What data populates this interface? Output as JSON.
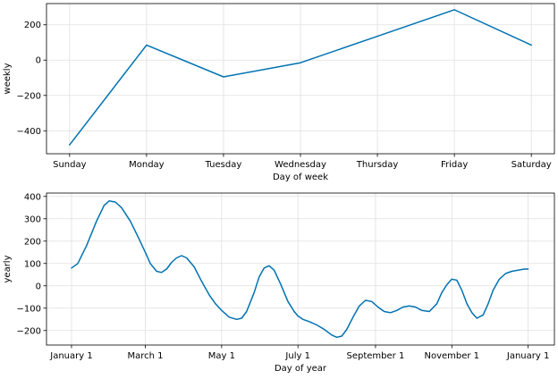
{
  "chart_data": [
    {
      "type": "line",
      "xlabel": "Day of week",
      "ylabel": "weekly",
      "categories": [
        "Sunday",
        "Monday",
        "Tuesday",
        "Wednesday",
        "Thursday",
        "Friday",
        "Saturday"
      ],
      "series": [
        {
          "values": [
            -480,
            85,
            -95,
            -15,
            135,
            285,
            85
          ],
          "color": "#0072B2"
        }
      ],
      "ylim": [
        -530,
        320
      ],
      "yticks": [
        -400,
        -200,
        0,
        200
      ],
      "ytick_labels": [
        "−400",
        "−200",
        "0",
        "200"
      ],
      "grid": true
    },
    {
      "type": "line",
      "xlabel": "Day of year",
      "ylabel": "yearly",
      "x_range": [
        -20,
        386
      ],
      "xticks": [
        0,
        59,
        120,
        181,
        243,
        304,
        365
      ],
      "xtick_labels": [
        "January 1",
        "March 1",
        "May 1",
        "July 1",
        "September 1",
        "November 1",
        "January 1"
      ],
      "ylim": [
        -265,
        415
      ],
      "yticks": [
        -200,
        -100,
        0,
        100,
        200,
        300,
        400
      ],
      "ytick_labels": [
        "−200",
        "−100",
        "0",
        "100",
        "200",
        "300",
        "400"
      ],
      "grid": true,
      "series": [
        {
          "color": "#0072B2",
          "x": [
            0,
            5,
            12,
            20,
            26,
            30,
            35,
            40,
            47,
            54,
            59,
            63,
            68,
            72,
            76,
            80,
            84,
            88,
            92,
            98,
            104,
            110,
            115,
            120,
            126,
            132,
            136,
            140,
            146,
            150,
            154,
            158,
            162,
            167,
            173,
            178,
            181,
            185,
            190,
            196,
            202,
            208,
            212,
            216,
            220,
            225,
            230,
            235,
            240,
            245,
            250,
            255,
            260,
            265,
            270,
            275,
            280,
            286,
            292,
            296,
            300,
            304,
            308,
            312,
            316,
            320,
            324,
            329,
            333,
            337,
            342,
            347,
            352,
            357,
            362,
            365
          ],
          "values": [
            80,
            100,
            180,
            290,
            360,
            380,
            375,
            350,
            290,
            210,
            150,
            100,
            65,
            60,
            75,
            105,
            125,
            135,
            125,
            85,
            20,
            -40,
            -80,
            -110,
            -140,
            -150,
            -145,
            -115,
            -30,
            40,
            80,
            90,
            70,
            10,
            -70,
            -115,
            -135,
            -150,
            -160,
            -175,
            -195,
            -220,
            -230,
            -225,
            -195,
            -140,
            -90,
            -65,
            -70,
            -95,
            -115,
            -120,
            -110,
            -95,
            -90,
            -95,
            -110,
            -115,
            -80,
            -30,
            5,
            30,
            25,
            -20,
            -80,
            -120,
            -145,
            -130,
            -80,
            -20,
            30,
            55,
            65,
            70,
            75,
            75
          ]
        }
      ]
    }
  ]
}
